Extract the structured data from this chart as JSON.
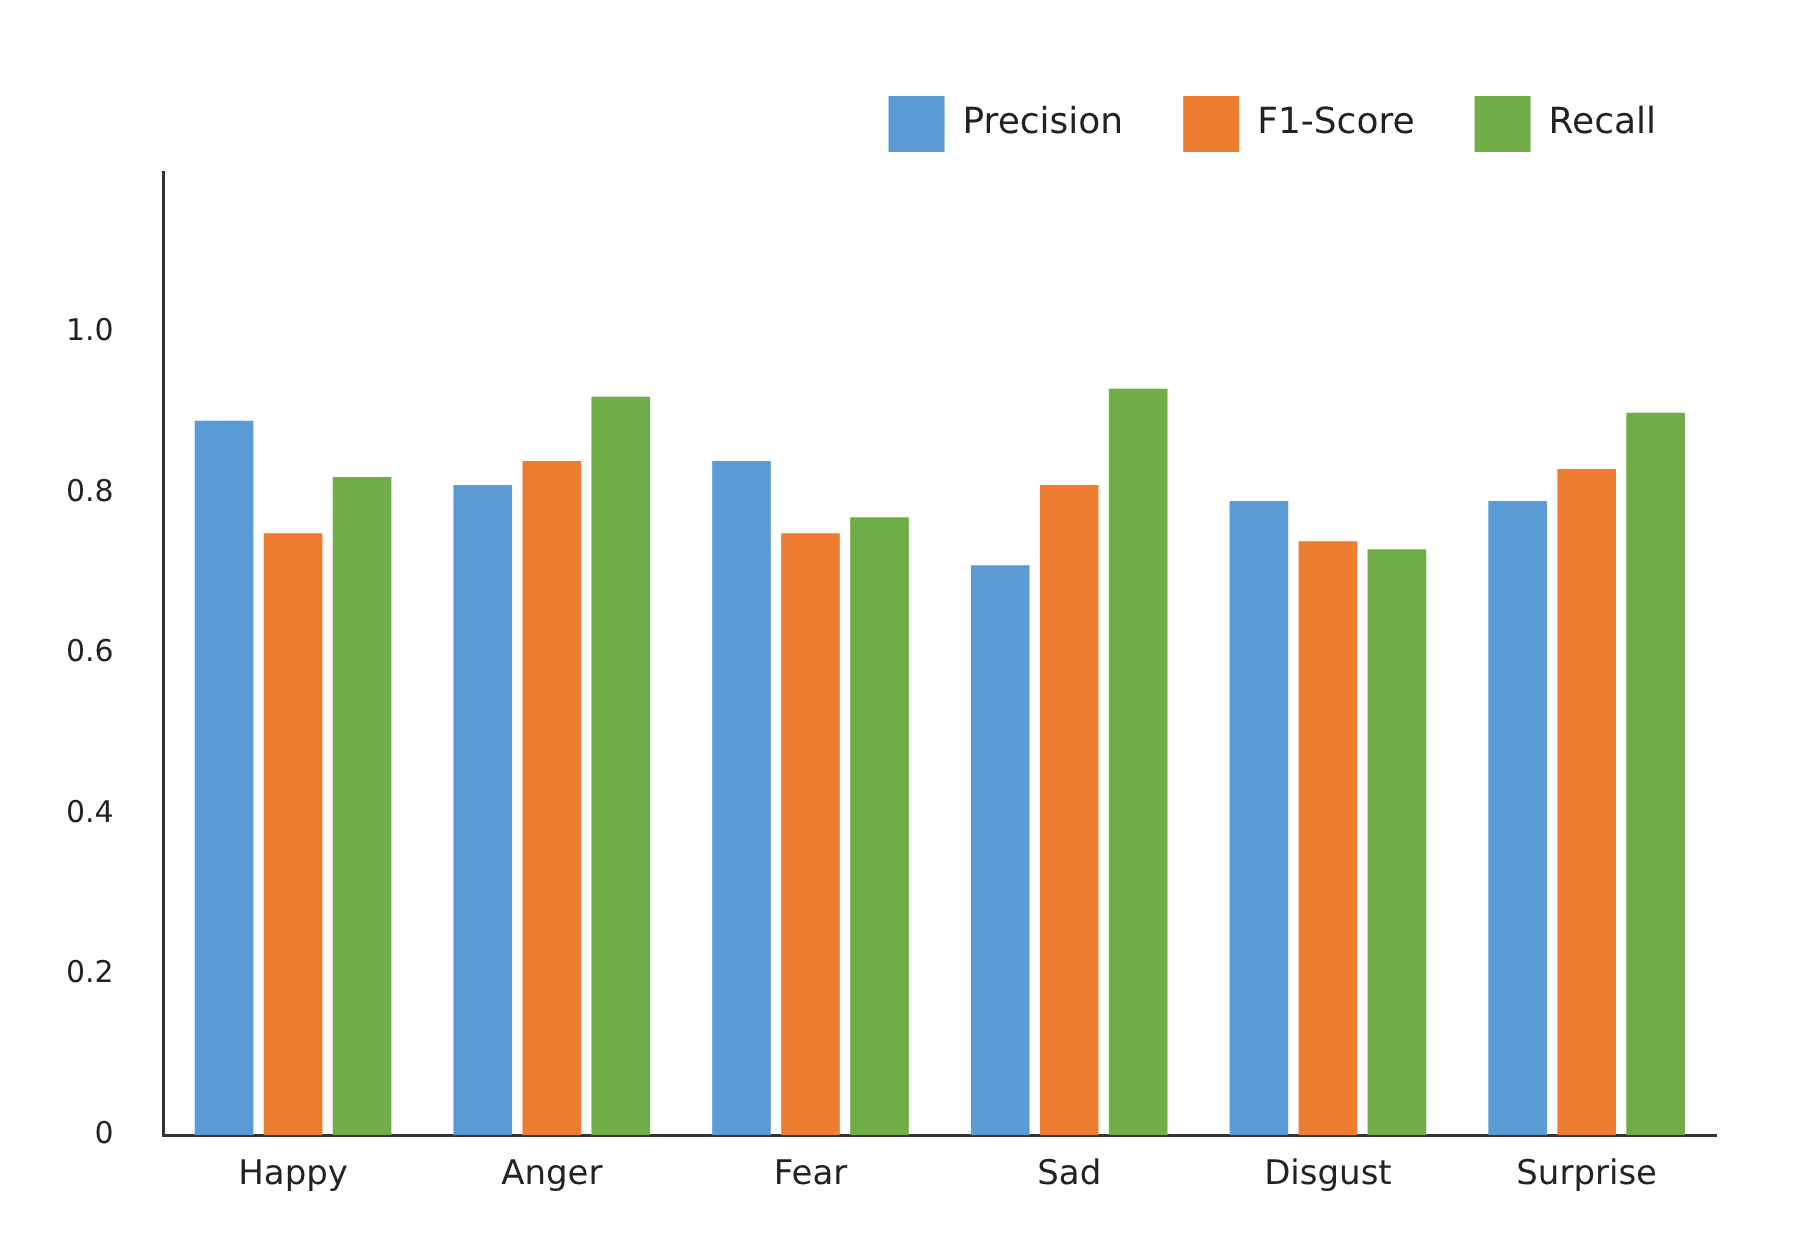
{
  "chart_data": {
    "type": "bar",
    "categories": [
      "Happy",
      "Anger",
      "Fear",
      "Sad",
      "Disgust",
      "Surprise"
    ],
    "series": [
      {
        "name": "Precision",
        "color": "#5b9bd5",
        "values": [
          0.89,
          0.81,
          0.84,
          0.71,
          0.79,
          0.79
        ]
      },
      {
        "name": "F1-Score",
        "color": "#ed7d31",
        "values": [
          0.75,
          0.84,
          0.75,
          0.81,
          0.74,
          0.83
        ]
      },
      {
        "name": "Recall",
        "color": "#70ad47",
        "values": [
          0.82,
          0.92,
          0.77,
          0.93,
          0.73,
          0.9
        ]
      }
    ],
    "ylim": [
      0,
      1.2
    ],
    "yticks": [
      0,
      0.2,
      0.4,
      0.6,
      0.8,
      {
        "value": 1,
        "label": "1.0"
      }
    ],
    "grid": false,
    "legend": "top right"
  }
}
